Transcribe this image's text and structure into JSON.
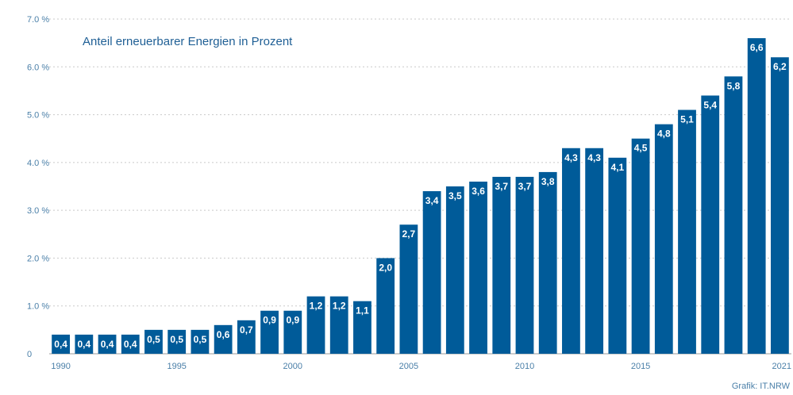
{
  "chart_data": {
    "type": "bar",
    "title": "Anteil erneuerbarer Energien in Prozent",
    "source": "Grafik: IT.NRW",
    "bar_color": "#005b99",
    "categories": [
      "1990",
      "1991",
      "1992",
      "1993",
      "1994",
      "1995",
      "1996",
      "1997",
      "1998",
      "1999",
      "2000",
      "2001",
      "2002",
      "2003",
      "2004",
      "2005",
      "2006",
      "2007",
      "2008",
      "2009",
      "2010",
      "2011",
      "2012",
      "2013",
      "2014",
      "2015",
      "2016",
      "2017",
      "2018",
      "2019",
      "2020",
      "2021"
    ],
    "values": [
      0.4,
      0.4,
      0.4,
      0.4,
      0.5,
      0.5,
      0.5,
      0.6,
      0.7,
      0.9,
      0.9,
      1.2,
      1.2,
      1.1,
      2.0,
      2.7,
      3.4,
      3.5,
      3.6,
      3.7,
      3.7,
      3.8,
      4.3,
      4.3,
      4.1,
      4.5,
      4.8,
      5.1,
      5.4,
      5.8,
      6.6,
      6.2
    ],
    "data_labels": [
      "0,4",
      "0,4",
      "0,4",
      "0,4",
      "0,5",
      "0,5",
      "0,5",
      "0,6",
      "0,7",
      "0,9",
      "0,9",
      "1,2",
      "1,2",
      "1,1",
      "2,0",
      "2,7",
      "3,4",
      "3,5",
      "3,6",
      "3,7",
      "3,7",
      "3,8",
      "4,3",
      "4,3",
      "4,1",
      "4,5",
      "4,8",
      "5,1",
      "5,4",
      "5,8",
      "6,6",
      "6,2"
    ],
    "x_tick_labels": [
      "1990",
      "1995",
      "2000",
      "2005",
      "2010",
      "2015",
      "2021"
    ],
    "x_tick_positions": [
      "1990",
      "1995",
      "2000",
      "2005",
      "2010",
      "2015",
      "2021"
    ],
    "y_ticks": [
      0,
      1,
      2,
      3,
      4,
      5,
      6,
      7
    ],
    "y_tick_labels": [
      "0",
      "1.0 %",
      "2.0 %",
      "3.0 %",
      "4.0 %",
      "5.0 %",
      "6.0 %",
      "7.0 %"
    ],
    "ylim": [
      0,
      7
    ],
    "grid": true
  }
}
